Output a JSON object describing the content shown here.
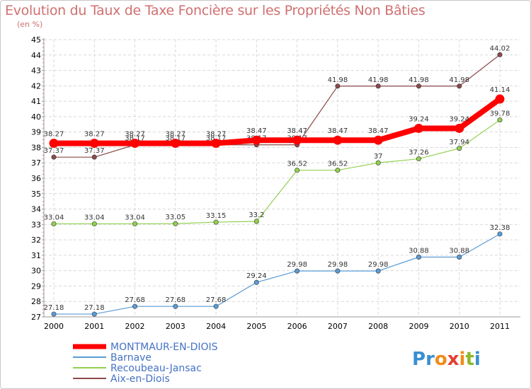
{
  "header": {
    "title": "Evolution du Taux de Taxe Foncière sur les Propriétés Non Bâties",
    "unit": "(en %)"
  },
  "logo": {
    "text": "Proxiti",
    "letters": [
      "P",
      "r",
      "o",
      "x",
      "i",
      "t",
      "i"
    ],
    "colors": [
      "#3a8fd0",
      "#3a8fd0",
      "#f08c1a",
      "#e83c2e",
      "#f08c1a",
      "#8ab92d",
      "#3a8fd0"
    ]
  },
  "chart_data": {
    "type": "line",
    "title": "Evolution du Taux de Taxe Foncière sur les Propriétés Non Bâties",
    "ylabel": "(en %)",
    "xlabel": "",
    "categories": [
      "2000",
      "2001",
      "2002",
      "2003",
      "2004",
      "2005",
      "2006",
      "2007",
      "2008",
      "2009",
      "2010",
      "2011"
    ],
    "ylim": [
      27,
      45
    ],
    "yticks": [
      "27",
      "28",
      "29",
      "30",
      "31",
      "32",
      "33",
      "34",
      "35",
      "36",
      "37",
      "38",
      "39",
      "40",
      "41",
      "42",
      "43",
      "44",
      "45"
    ],
    "legend_position": "bottom-left",
    "series": [
      {
        "name": "MONTMAUR-EN-DIOIS",
        "color": "#ff0000",
        "emphasis": true,
        "values": [
          38.27,
          38.27,
          38.27,
          38.27,
          38.27,
          38.47,
          38.47,
          38.47,
          38.47,
          39.24,
          39.24,
          41.14
        ],
        "labels": [
          "38.27",
          "38.27",
          "38.27",
          "38.27",
          "38.27",
          "38.47",
          "38.47",
          "38.47",
          "38.47",
          "39.24",
          "39.24",
          "41.14"
        ]
      },
      {
        "name": "Barnave",
        "color": "#5b9bd5",
        "emphasis": false,
        "values": [
          27.18,
          27.18,
          27.68,
          27.68,
          27.68,
          29.24,
          29.98,
          29.98,
          29.98,
          30.88,
          30.88,
          32.38
        ],
        "labels": [
          "27.18",
          "27.18",
          "27.68",
          "27.68",
          "27.68",
          "29.24",
          "29.98",
          "29.98",
          "29.98",
          "30.88",
          "30.88",
          "32.38"
        ]
      },
      {
        "name": "Recoubeau-Jansac",
        "color": "#92d050",
        "emphasis": false,
        "values": [
          33.04,
          33.04,
          33.04,
          33.05,
          33.15,
          33.2,
          36.52,
          36.52,
          37,
          37.26,
          37.94,
          39.78
        ],
        "labels": [
          "33.04",
          "33.04",
          "33.04",
          "33.05",
          "33.15",
          "33.2",
          "36.52",
          "36.52",
          "37",
          "37.26",
          "37.94",
          "39.78"
        ]
      },
      {
        "name": "Aix-en-Diois",
        "color": "#8b4a4a",
        "emphasis": false,
        "values": [
          37.37,
          37.37,
          38.17,
          38.17,
          38.17,
          38.17,
          38.17,
          41.98,
          41.98,
          41.98,
          41.98,
          44.02
        ],
        "labels": [
          "37.37",
          "37.37",
          "38.17",
          "38.17",
          "38.17",
          "38.17",
          "38.17",
          "41.98",
          "41.98",
          "41.98",
          "41.98",
          "44.02"
        ]
      }
    ]
  }
}
